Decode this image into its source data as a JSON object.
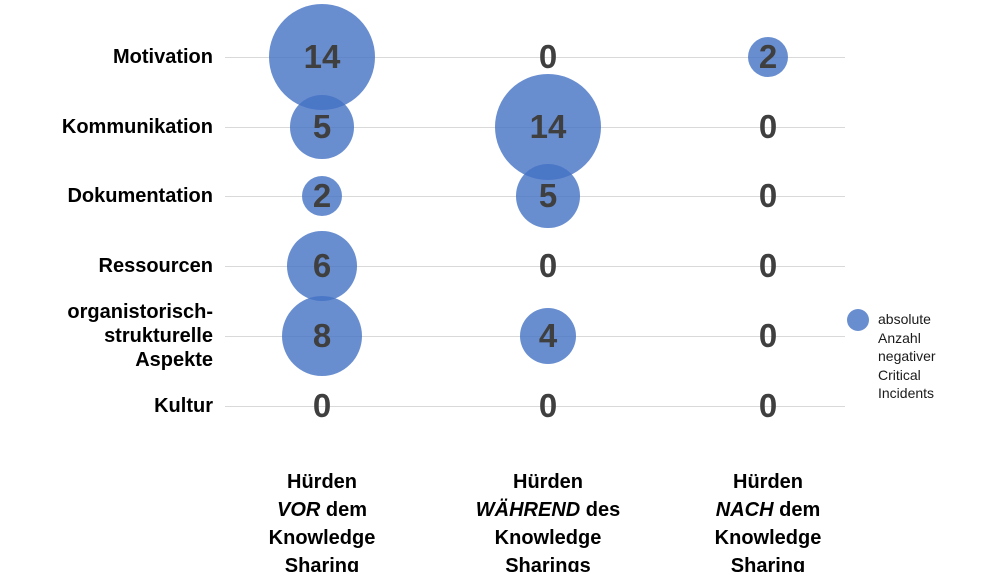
{
  "chart_data": {
    "type": "bubble",
    "title": "",
    "xlabel": "",
    "ylabel": "",
    "grid": "horizontal-lines",
    "legend_position": "right",
    "categories": [
      "Motivation",
      "Kommunikation",
      "Dokumentation",
      "Ressourcen",
      "organistorisch-\nstrukturelle\nAspekte",
      "Kultur"
    ],
    "columns": [
      {
        "header": {
          "line1": "Hürden",
          "italic": "VOR",
          "after_italic": " dem",
          "line3": "Knowledge",
          "line4": "Sharing"
        },
        "values": [
          14,
          5,
          2,
          6,
          8,
          0
        ]
      },
      {
        "header": {
          "line1": "Hürden",
          "italic": "WÄHREND",
          "after_italic": " des",
          "line3": "Knowledge",
          "line4": "Sharings"
        },
        "values": [
          0,
          14,
          5,
          0,
          4,
          0
        ]
      },
      {
        "header": {
          "line1": "Hürden",
          "italic": "NACH",
          "after_italic": " dem",
          "line3": "Knowledge",
          "line4": "Sharing"
        },
        "values": [
          2,
          0,
          0,
          0,
          0,
          0
        ]
      }
    ],
    "legend": {
      "label": "absolute\nAnzahl\nnegativer\nCritical\nIncidents",
      "swatch": "bubble-circle"
    },
    "styles": {
      "bubble_color": "#4472c4",
      "bubble_opacity": 0.8,
      "value_color": "#3f3f3f",
      "gridline_color": "#d9d9d9",
      "label_color": "#000000",
      "legend_text_color": "#1a1a1a",
      "background": "#ffffff"
    },
    "size_encoding": "area-proportional"
  }
}
